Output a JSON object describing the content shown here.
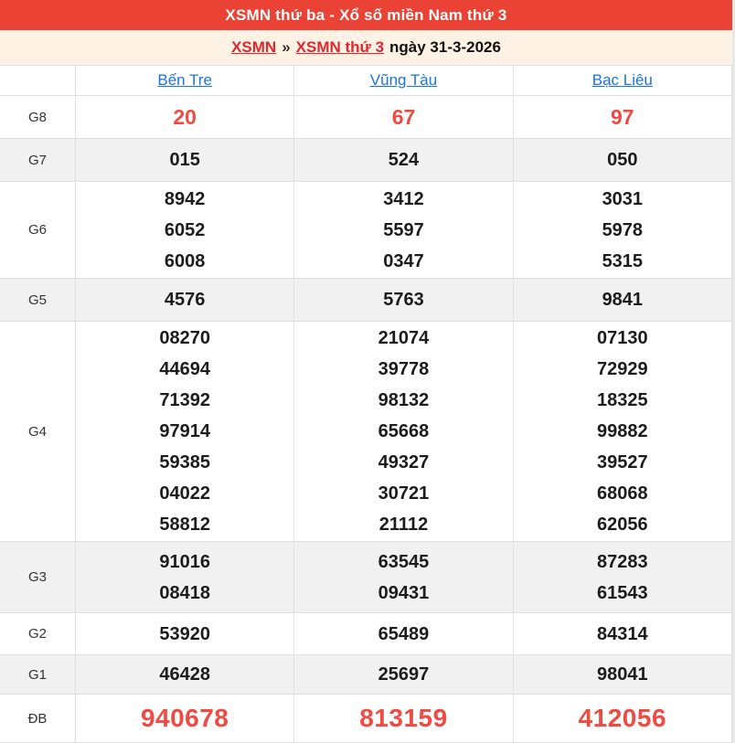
{
  "title": "XSMN thứ ba - Xổ số miền Nam thứ 3",
  "breadcrumb": {
    "link1": "XSMN",
    "separator": "»",
    "link2": "XSMN thứ 3",
    "date_text": "ngày 31-3-2026"
  },
  "columns": [
    "Bến Tre",
    "Vũng Tàu",
    "Bạc Liêu"
  ],
  "rows": [
    {
      "label": "G8",
      "style": "red",
      "values": [
        [
          "20"
        ],
        [
          "67"
        ],
        [
          "97"
        ]
      ]
    },
    {
      "label": "G7",
      "style": "normal",
      "values": [
        [
          "015"
        ],
        [
          "524"
        ],
        [
          "050"
        ]
      ]
    },
    {
      "label": "G6",
      "style": "normal",
      "values": [
        [
          "8942",
          "6052",
          "6008"
        ],
        [
          "3412",
          "5597",
          "0347"
        ],
        [
          "3031",
          "5978",
          "5315"
        ]
      ]
    },
    {
      "label": "G5",
      "style": "normal",
      "values": [
        [
          "4576"
        ],
        [
          "5763"
        ],
        [
          "9841"
        ]
      ]
    },
    {
      "label": "G4",
      "style": "normal",
      "values": [
        [
          "08270",
          "44694",
          "71392",
          "97914",
          "59385",
          "04022",
          "58812"
        ],
        [
          "21074",
          "39778",
          "98132",
          "65668",
          "49327",
          "30721",
          "21112"
        ],
        [
          "07130",
          "72929",
          "18325",
          "99882",
          "39527",
          "68068",
          "62056"
        ]
      ]
    },
    {
      "label": "G3",
      "style": "normal",
      "values": [
        [
          "91016",
          "08418"
        ],
        [
          "63545",
          "09431"
        ],
        [
          "87283",
          "61543"
        ]
      ]
    },
    {
      "label": "G2",
      "style": "normal",
      "values": [
        [
          "53920"
        ],
        [
          "65489"
        ],
        [
          "84314"
        ]
      ]
    },
    {
      "label": "G1",
      "style": "normal",
      "values": [
        [
          "46428"
        ],
        [
          "25697"
        ],
        [
          "98041"
        ]
      ]
    },
    {
      "label": "ĐB",
      "style": "jackpot",
      "values": [
        [
          "940678"
        ],
        [
          "813159"
        ],
        [
          "412056"
        ]
      ]
    }
  ],
  "colors": {
    "title_bar_bg": "#ea4235",
    "highlight_number_red": "#f04a42",
    "breadcrumb_bg": "#fdf2e4",
    "breadcrumb_link_red": "#e3262e",
    "column_link_blue": "#1a73e8",
    "stripe_row_gray": "#f1f1f1",
    "border_gray": "#e0e0e0"
  }
}
